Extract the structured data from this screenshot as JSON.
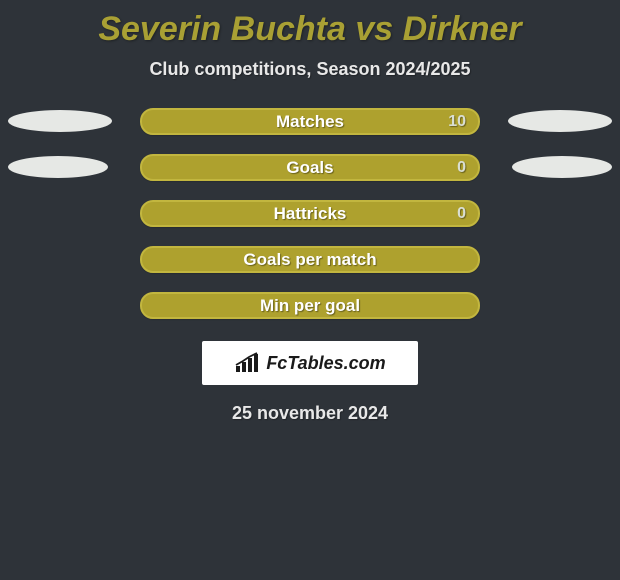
{
  "background_color": "#2e3339",
  "title": {
    "text": "Severin Buchta vs Dirkner",
    "color": "#a9a034",
    "fontsize": 34
  },
  "subtitle": {
    "text": "Club competitions, Season 2024/2025",
    "color": "#e8e8e8",
    "fontsize": 18
  },
  "bar_style": {
    "fill": "#aea12e",
    "border": "#c2b63f",
    "label_color": "#ffffff",
    "value_color": "#d9ded2",
    "radius": 13
  },
  "ellipse_style": {
    "fill": "#e6e8e5"
  },
  "rows": [
    {
      "label": "Matches",
      "value_right": "10",
      "show_value": true,
      "ellipse_left_width": 104,
      "ellipse_right_width": 104
    },
    {
      "label": "Goals",
      "value_right": "0",
      "show_value": true,
      "ellipse_left_width": 100,
      "ellipse_right_width": 100
    },
    {
      "label": "Hattricks",
      "value_right": "0",
      "show_value": true,
      "ellipse_left_width": 0,
      "ellipse_right_width": 0
    },
    {
      "label": "Goals per match",
      "value_right": "",
      "show_value": false,
      "ellipse_left_width": 0,
      "ellipse_right_width": 0
    },
    {
      "label": "Min per goal",
      "value_right": "",
      "show_value": false,
      "ellipse_left_width": 0,
      "ellipse_right_width": 0
    }
  ],
  "logo": {
    "box_bg": "#ffffff",
    "text": "FcTables.com",
    "text_color": "#1a1a1a",
    "icon_color": "#1a1a1a"
  },
  "date": {
    "text": "25 november 2024",
    "color": "#e8e8e8",
    "fontsize": 18
  }
}
